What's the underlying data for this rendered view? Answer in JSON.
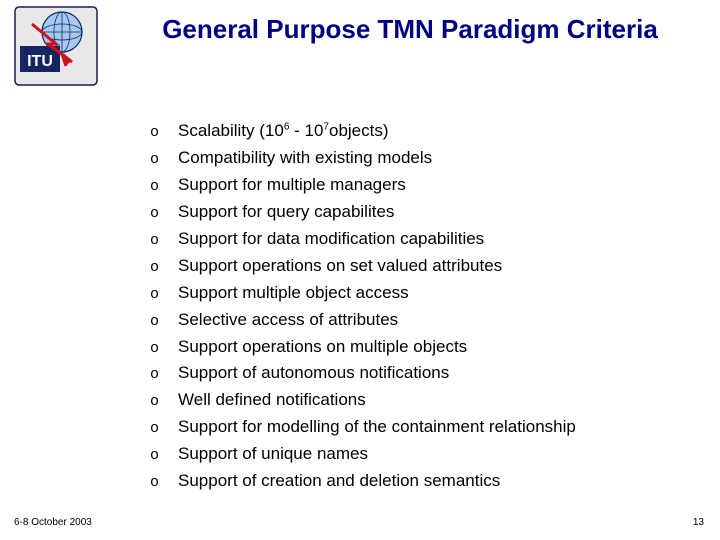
{
  "logo": {
    "outer_fill": "#e8e8e8",
    "outer_stroke": "#1a1a5a",
    "globe_fill": "#a8c8f0",
    "globe_stroke": "#0a2a6a",
    "itu_bg": "#152560",
    "itu_text": "ITU",
    "bolt_color": "#d01020"
  },
  "title": "General Purpose TMN Paradigm Criteria",
  "title_color": "#000080",
  "title_fontsize": 26,
  "bullet_marker": "o",
  "bullets": [
    {
      "pre": "Scalability (10",
      "sup1": "6",
      "mid": " - 10",
      "sup2": "7",
      "post": "objects)"
    },
    {
      "text": "Compatibility with existing models"
    },
    {
      "text": "Support for multiple managers"
    },
    {
      "text": "Support for query capabilites"
    },
    {
      "text": "Support for data modification capabilities"
    },
    {
      "text": "Support operations on set valued attributes"
    },
    {
      "text": "Support multiple object access"
    },
    {
      "text": "Selective access of attributes"
    },
    {
      "text": "Support operations on multiple objects"
    },
    {
      "text": "Support of autonomous notifications"
    },
    {
      "text": "Well defined notifications"
    },
    {
      "text": "Support for modelling of the containment relationship"
    },
    {
      "text": "Support of unique names"
    },
    {
      "text": "Support of creation and deletion semantics"
    }
  ],
  "bullet_fontsize": 17,
  "bullet_color": "#000000",
  "footer": {
    "date": "6-8 October 2003",
    "page": "13",
    "fontsize": 10
  },
  "background_color": "#ffffff"
}
